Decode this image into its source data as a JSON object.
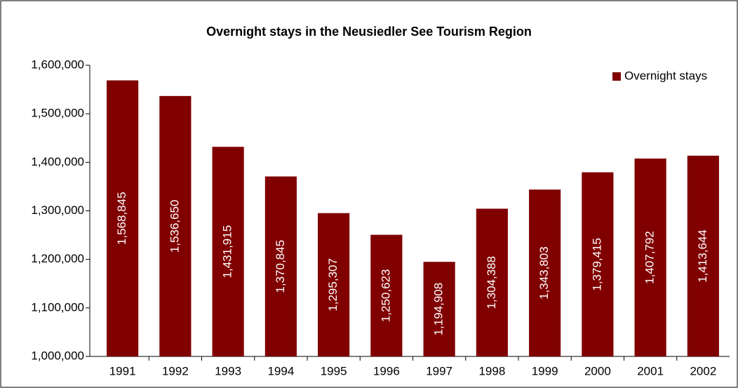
{
  "chart_data": {
    "type": "bar",
    "title": "Overnight stays in the Neusiedler See Tourism Region",
    "categories": [
      "1991",
      "1992",
      "1993",
      "1994",
      "1995",
      "1996",
      "1997",
      "1998",
      "1999",
      "2000",
      "2001",
      "2002"
    ],
    "series": [
      {
        "name": "Overnight stays",
        "color": "#800000",
        "values": [
          1568845,
          1536650,
          1431915,
          1370845,
          1295307,
          1250623,
          1194908,
          1304388,
          1343803,
          1379415,
          1407792,
          1413644
        ],
        "value_labels": [
          "1,568,845",
          "1,536,650",
          "1,431,915",
          "1,370,845",
          "1,295,307",
          "1,250,623",
          "1,194,908",
          "1,304,388",
          "1,343,803",
          "1,379,415",
          "1,407,792",
          "1,413,644"
        ]
      }
    ],
    "ylim": [
      1000000,
      1600000
    ],
    "yticks": [
      {
        "value": 1000000,
        "label": "1,000,000"
      },
      {
        "value": 1100000,
        "label": "1,100,000"
      },
      {
        "value": 1200000,
        "label": "1,200,000"
      },
      {
        "value": 1300000,
        "label": "1,300,000"
      },
      {
        "value": 1400000,
        "label": "1,400,000"
      },
      {
        "value": 1500000,
        "label": "1,500,000"
      },
      {
        "value": 1600000,
        "label": "1,600,000"
      }
    ],
    "grid": false,
    "legend": "top-right"
  }
}
